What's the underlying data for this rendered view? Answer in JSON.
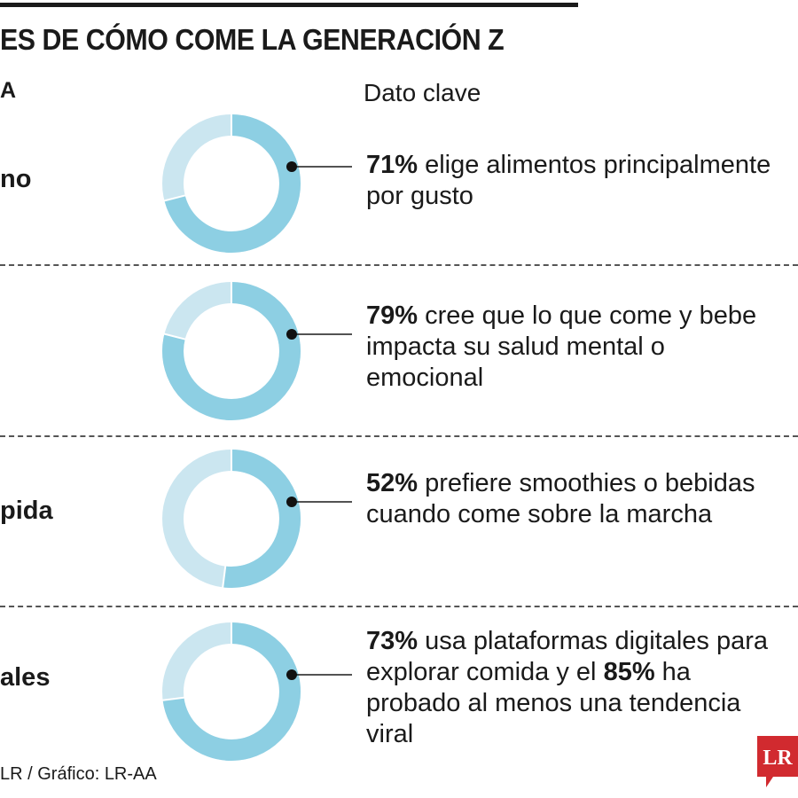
{
  "header": {
    "title": "ES DE CÓMO COME LA GENERACIÓN Z",
    "left_column_label": "A",
    "right_column_label": "Dato clave"
  },
  "chart_data": {
    "type": "pie",
    "variant": "donut",
    "colors": {
      "highlight": "#8dcfe3",
      "remainder": "#cbe6f0"
    },
    "rows": [
      {
        "label": "no",
        "percent": 71,
        "fact": {
          "highlight": "71%",
          "text": " elige alimentos principalmente por gusto"
        }
      },
      {
        "label": "",
        "percent": 79,
        "fact": {
          "highlight": "79%",
          "text": " cree que lo que come y bebe impacta su salud mental o emocional"
        }
      },
      {
        "label": "pida",
        "percent": 52,
        "fact": {
          "highlight": "52%",
          "text": " prefiere smoothies o bebidas cuando come sobre la marcha"
        }
      },
      {
        "label": "ales",
        "percent": 73,
        "fact": {
          "highlight": "73%",
          "text": " usa plataformas digitales para explorar comida y el ",
          "highlight2": "85%",
          "text2": " ha probado al menos una tendencia viral"
        }
      }
    ]
  },
  "footer": {
    "source": "LR / Gráfico: LR-AA"
  },
  "logo": {
    "text": "LR",
    "color": "#d12a2f"
  }
}
